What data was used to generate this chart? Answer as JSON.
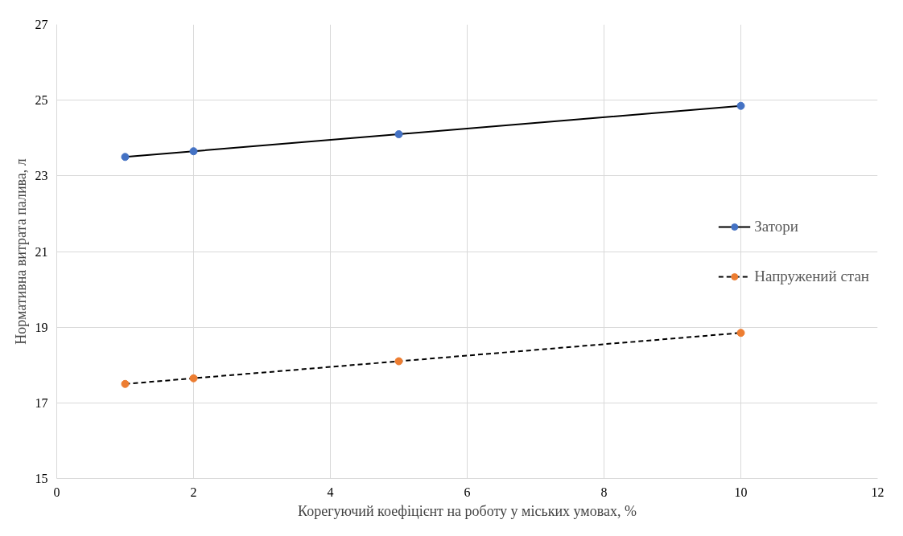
{
  "chart_data": {
    "type": "line",
    "xlabel": "Корегуючий коефіцієнт на роботу у міських умовах, %",
    "ylabel": "Нормативна витрата палива, л",
    "x": [
      1,
      2,
      5,
      10
    ],
    "series": [
      {
        "name": "Затори",
        "color": "#4472c4",
        "values": [
          23.5,
          23.65,
          24.1,
          24.85
        ],
        "line_style": "solid"
      },
      {
        "name": "Напружений стан",
        "color": "#ed7d31",
        "values": [
          17.5,
          17.65,
          18.1,
          18.85
        ],
        "line_style": "dashed"
      }
    ],
    "xlim": [
      0,
      12
    ],
    "xticks": [
      0,
      2,
      4,
      6,
      8,
      10,
      12
    ],
    "ylim": [
      15,
      27
    ],
    "yticks": [
      15,
      17,
      19,
      21,
      23,
      25,
      27
    ],
    "grid": true,
    "legend": "right",
    "marker": "circle"
  }
}
